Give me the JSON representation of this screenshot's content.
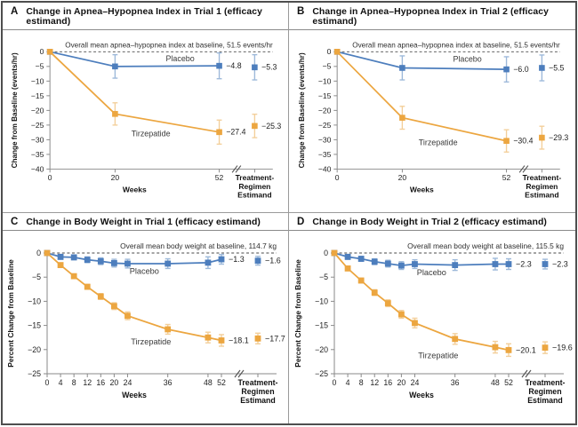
{
  "style": {
    "blue": "#4d7ebd",
    "blue_light": "#9db9da",
    "orange": "#eca640",
    "orange_light": "#f3cf9a"
  },
  "chart_data": [
    {
      "type": "line",
      "panel": "A",
      "title": "Change in Apnea–Hypopnea Index in Trial 1 (efficacy estimand)",
      "baseline_note": "Overall mean apnea–hypopnea index at baseline, 51.5 events/hr",
      "xlabel": "Weeks",
      "ylabel": "Change from Baseline (events/hr)",
      "estimand_label": [
        "Treatment-",
        "Regimen",
        "Estimand"
      ],
      "ylim": [
        0,
        -40
      ],
      "ytick_step": 5,
      "xticks": [
        0,
        20,
        52
      ],
      "series": [
        {
          "name": "Placebo",
          "color": "blue",
          "x": [
            0,
            20,
            52
          ],
          "y": [
            0,
            -5.0,
            -4.8
          ],
          "err": [
            0,
            4.0,
            4.4
          ],
          "end_label": "−4.8",
          "estimand": {
            "y": -5.3,
            "err": 4.3,
            "label": "−5.3"
          },
          "label_at": {
            "week": 40,
            "value": -3.2
          }
        },
        {
          "name": "Tirzepatide",
          "color": "orange",
          "x": [
            0,
            20,
            52
          ],
          "y": [
            0,
            -21.2,
            -27.4
          ],
          "err": [
            0,
            3.8,
            4.1
          ],
          "end_label": "−27.4",
          "estimand": {
            "y": -25.3,
            "err": 4.0,
            "label": "−25.3"
          },
          "label_at": {
            "week": 31,
            "value": -28.8
          }
        }
      ]
    },
    {
      "type": "line",
      "panel": "B",
      "title": "Change in Apnea–Hypopnea Index in Trial 2 (efficacy estimand)",
      "baseline_note": "Overall mean apnea–hypopnea index at baseline, 51.5 events/hr",
      "xlabel": "Weeks",
      "ylabel": "Change from Baseline (events/hr)",
      "estimand_label": [
        "Treatment-",
        "Regimen",
        "Estimand"
      ],
      "ylim": [
        0,
        -40
      ],
      "ytick_step": 5,
      "xticks": [
        0,
        20,
        52
      ],
      "series": [
        {
          "name": "Placebo",
          "color": "blue",
          "x": [
            0,
            20,
            52
          ],
          "y": [
            0,
            -5.5,
            -6.0
          ],
          "err": [
            0,
            4.1,
            4.3
          ],
          "end_label": "−6.0",
          "estimand": {
            "y": -5.5,
            "err": 4.4,
            "label": "−5.5"
          },
          "label_at": {
            "week": 40,
            "value": -3.4
          }
        },
        {
          "name": "Tirzepatide",
          "color": "orange",
          "x": [
            0,
            20,
            52
          ],
          "y": [
            0,
            -22.5,
            -30.4
          ],
          "err": [
            0,
            3.9,
            3.8
          ],
          "end_label": "−30.4",
          "estimand": {
            "y": -29.3,
            "err": 3.9,
            "label": "−29.3"
          },
          "label_at": {
            "week": 31,
            "value": -31.8
          }
        }
      ]
    },
    {
      "type": "line",
      "panel": "C",
      "title": "Change in Body Weight in Trial 1 (efficacy estimand)",
      "baseline_note": "Overall mean body weight at baseline, 114.7 kg",
      "xlabel": "Weeks",
      "ylabel": "Percent Change from Baseline",
      "estimand_label": [
        "Treatment-",
        "Regimen",
        "Estimand"
      ],
      "ylim": [
        0,
        -25
      ],
      "ytick_step": 5,
      "xticks": [
        0,
        4,
        8,
        12,
        16,
        20,
        24,
        36,
        48,
        52
      ],
      "series": [
        {
          "name": "Placebo",
          "color": "blue",
          "x": [
            0,
            4,
            8,
            12,
            16,
            20,
            24,
            36,
            48,
            52
          ],
          "y": [
            0,
            -0.8,
            -0.9,
            -1.4,
            -1.7,
            -2.1,
            -2.2,
            -2.2,
            -2.0,
            -1.3
          ],
          "err": [
            0,
            0.5,
            0.5,
            0.6,
            0.7,
            0.8,
            0.9,
            1.0,
            1.2,
            1.0
          ],
          "end_label": "−1.3",
          "estimand": {
            "y": -1.6,
            "err": 0.9,
            "label": "−1.6"
          },
          "label_at": {
            "week": 29,
            "value": -4.3
          }
        },
        {
          "name": "Tirzepatide",
          "color": "orange",
          "x": [
            0,
            4,
            8,
            12,
            16,
            20,
            24,
            36,
            48,
            52
          ],
          "y": [
            0,
            -2.5,
            -4.8,
            -7.0,
            -9.0,
            -11.0,
            -13.0,
            -15.8,
            -17.5,
            -18.1
          ],
          "err": [
            0,
            0.3,
            0.4,
            0.5,
            0.6,
            0.7,
            0.8,
            1.0,
            1.1,
            1.2
          ],
          "end_label": "−18.1",
          "estimand": {
            "y": -17.7,
            "err": 1.1,
            "label": "−17.7"
          },
          "label_at": {
            "week": 31,
            "value": -18.9
          }
        }
      ]
    },
    {
      "type": "line",
      "panel": "D",
      "title": "Change in Body Weight in Trial 2 (efficacy estimand)",
      "baseline_note": "Overall mean body weight at baseline, 115.5 kg",
      "xlabel": "Weeks",
      "ylabel": "Percent Change from Baseline",
      "estimand_label": [
        "Treatment-",
        "Regimen",
        "Estimand"
      ],
      "ylim": [
        0,
        -25
      ],
      "ytick_step": 5,
      "xticks": [
        0,
        4,
        8,
        12,
        16,
        20,
        24,
        36,
        48,
        52
      ],
      "series": [
        {
          "name": "Placebo",
          "color": "blue",
          "x": [
            0,
            4,
            8,
            12,
            16,
            20,
            24,
            36,
            48,
            52
          ],
          "y": [
            0,
            -0.8,
            -1.2,
            -1.8,
            -2.2,
            -2.6,
            -2.3,
            -2.5,
            -2.3,
            -2.3
          ],
          "err": [
            0,
            0.5,
            0.5,
            0.6,
            0.7,
            0.8,
            0.9,
            1.1,
            1.2,
            1.1
          ],
          "end_label": "−2.3",
          "estimand": {
            "y": -2.3,
            "err": 1.0,
            "label": "−2.3"
          },
          "label_at": {
            "week": 29,
            "value": -4.6
          }
        },
        {
          "name": "Tirzepatide",
          "color": "orange",
          "x": [
            0,
            4,
            8,
            12,
            16,
            20,
            24,
            36,
            48,
            52
          ],
          "y": [
            0,
            -3.2,
            -5.7,
            -8.2,
            -10.4,
            -12.7,
            -14.5,
            -17.8,
            -19.5,
            -20.1
          ],
          "err": [
            0,
            0.4,
            0.5,
            0.6,
            0.7,
            0.8,
            1.0,
            1.1,
            1.2,
            1.3
          ],
          "end_label": "−20.1",
          "estimand": {
            "y": -19.6,
            "err": 1.2,
            "label": "−19.6"
          },
          "label_at": {
            "week": 31,
            "value": -21.8
          }
        }
      ]
    }
  ]
}
